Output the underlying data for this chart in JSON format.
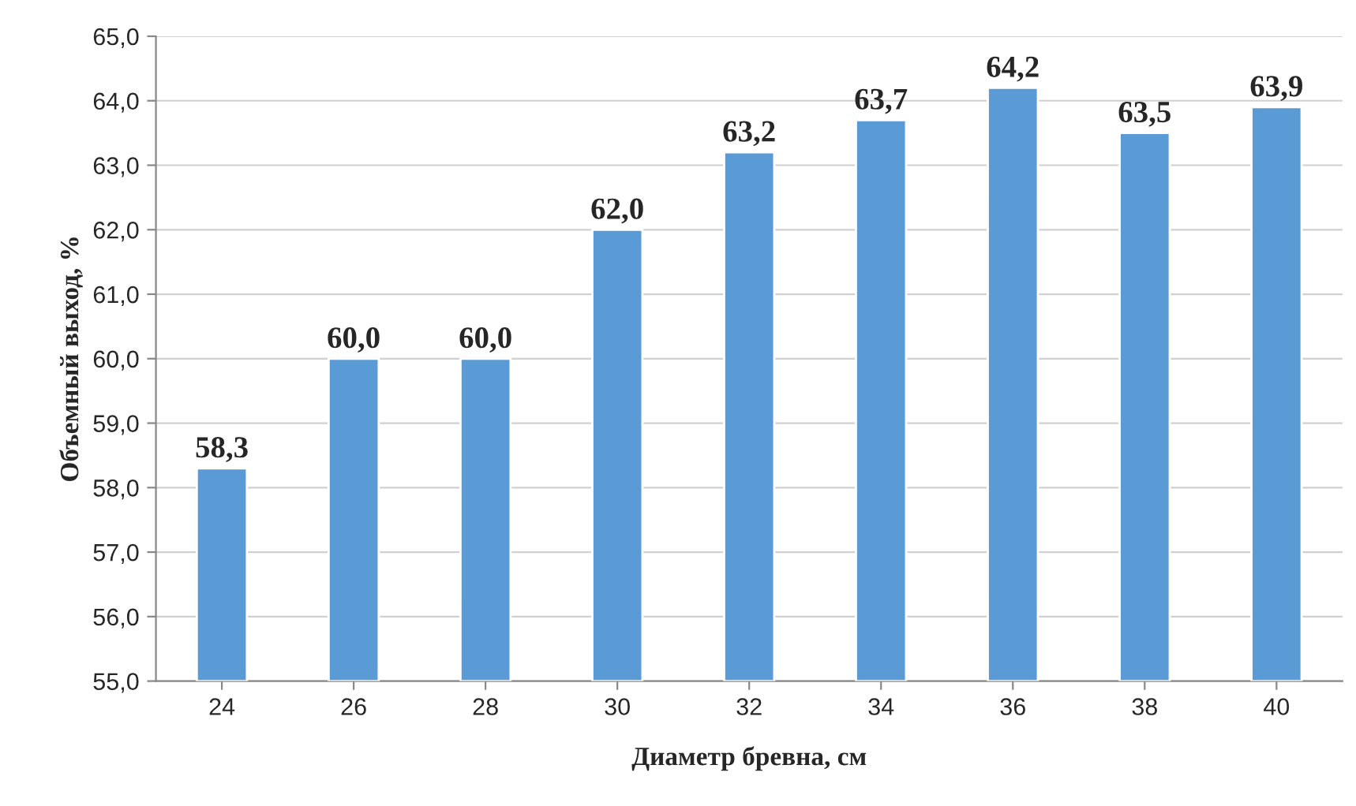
{
  "chart_data": {
    "type": "bar",
    "xlabel": "Диаметр бревна, см",
    "ylabel": "Объемный выход, %",
    "categories": [
      "24",
      "26",
      "28",
      "30",
      "32",
      "34",
      "36",
      "38",
      "40"
    ],
    "values": [
      58.3,
      60.0,
      60.0,
      62.0,
      63.2,
      63.7,
      64.2,
      63.5,
      63.9
    ],
    "value_labels": [
      "58,3",
      "60,0",
      "60,0",
      "62,0",
      "63,2",
      "63,7",
      "64,2",
      "63,5",
      "63,9"
    ],
    "color": "#5b9bd5",
    "ylim": [
      55,
      65
    ],
    "yticks": [
      {
        "value": 55,
        "label": "55,0"
      },
      {
        "value": 56,
        "label": "56,0"
      },
      {
        "value": 57,
        "label": "57,0"
      },
      {
        "value": 58,
        "label": "58,0"
      },
      {
        "value": 59,
        "label": "59,0"
      },
      {
        "value": 60,
        "label": "60,0"
      },
      {
        "value": 61,
        "label": "61,0"
      },
      {
        "value": 62,
        "label": "62,0"
      },
      {
        "value": 63,
        "label": "63,0"
      },
      {
        "value": 64,
        "label": "64,0"
      },
      {
        "value": 65,
        "label": "65,0"
      }
    ],
    "grid": "y"
  }
}
